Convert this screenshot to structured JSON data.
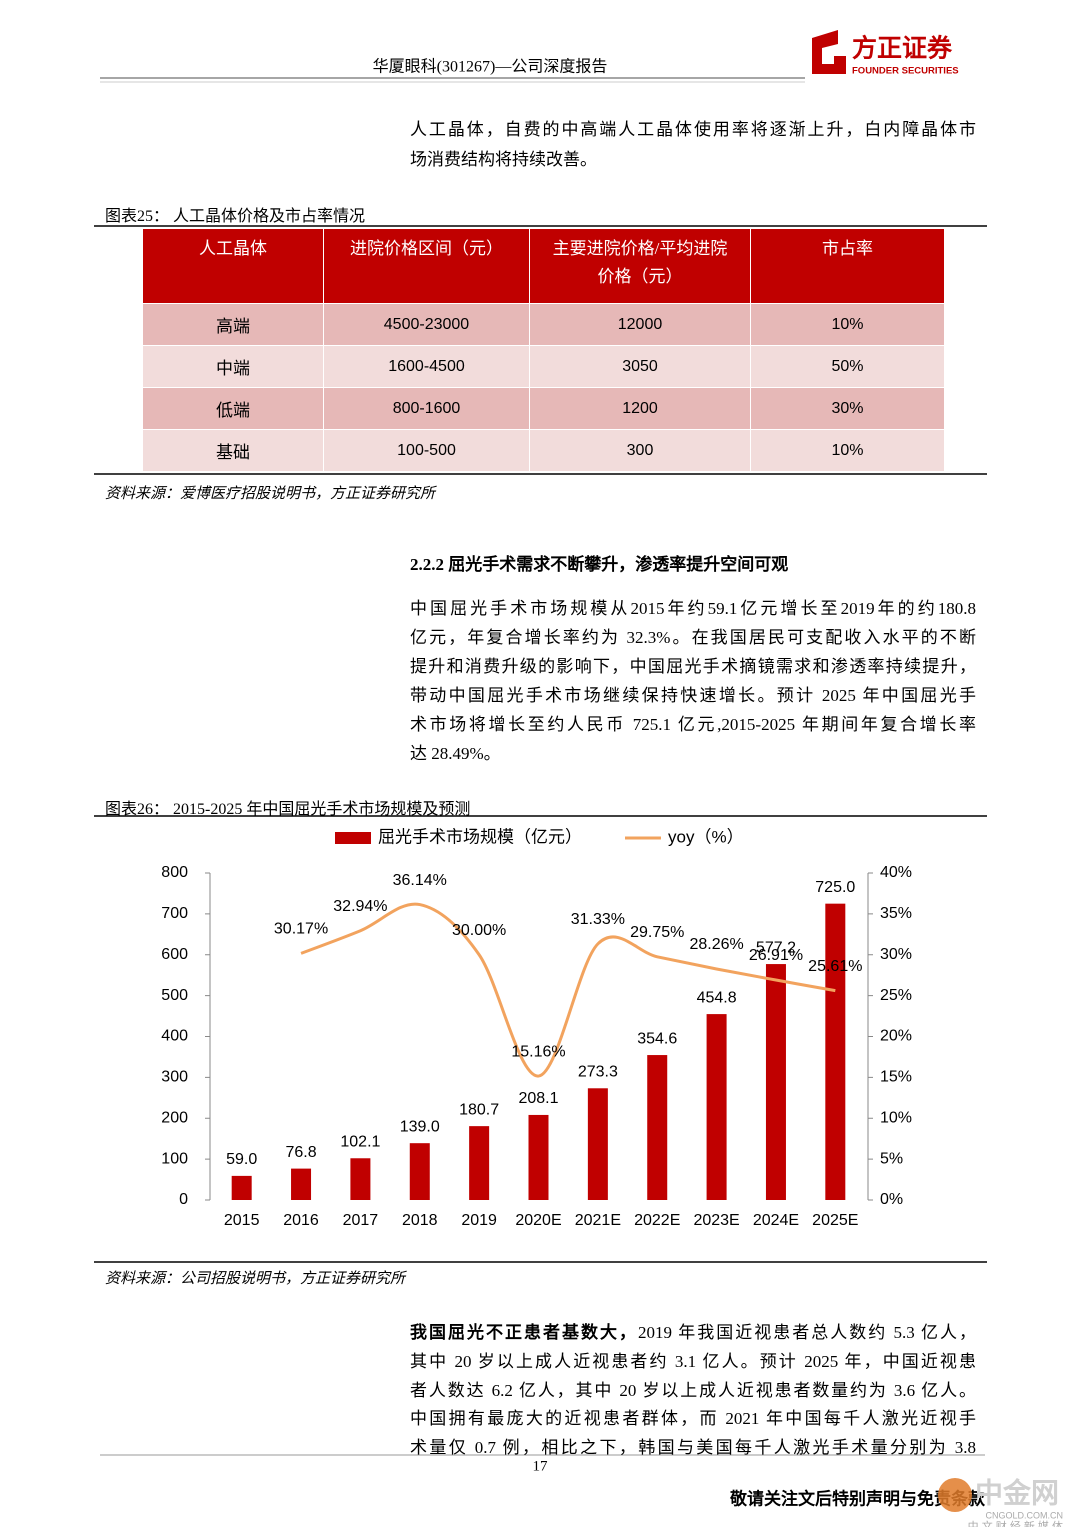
{
  "header": {
    "title": "华厦眼科(301267)—公司深度报告",
    "logo_cn": "方正证券",
    "logo_en": "FOUNDER SECURITIES"
  },
  "intro": {
    "lines": [
      "人工晶体，自费的中高端人工晶体使用率将逐渐上升，白内障晶体市",
      "场消费结构将持续改善。"
    ]
  },
  "table_caption": "图表25：  人工晶体价格及市占率情况",
  "table": {
    "header": [
      "人工晶体",
      "进院价格区间（元）",
      "主要进院价格/平均进院价格（元）",
      "市占率"
    ],
    "rows": [
      [
        "高端",
        "4500-23000",
        "12000",
        "10%"
      ],
      [
        "中端",
        "1600-4500",
        "3050",
        "50%"
      ],
      [
        "低端",
        "800-1600",
        "1200",
        "30%"
      ],
      [
        "基础",
        "100-500",
        "300",
        "10%"
      ]
    ]
  },
  "table_source": "资料来源：爱博医疗招股说明书，方正证券研究所",
  "section": {
    "heading": "2.2.2 屈光手术需求不断攀升，渗透率提升空间可观",
    "lines": [
      "中国屈光手术市场规模从2015年约59.1亿元增长至2019年的约180.8",
      "亿元，年复合增长率约为 32.3%。在我国居民可支配收入水平的不断",
      "提升和消费升级的影响下，中国屈光手术摘镜需求和渗透率持续提升，",
      "带动中国屈光手术市场继续保持快速增长。预计 2025 年中国屈光手",
      "术市场将增长至约人民币 725.1 亿元,2015-2025 年期间年复合增长率",
      "达 28.49%。"
    ]
  },
  "chart_caption": "图表26：  2015-2025 年中国屈光手术市场规模及预测",
  "chart_data": {
    "type": "bar",
    "categories": [
      "2015",
      "2016",
      "2017",
      "2018",
      "2019",
      "2020E",
      "2021E",
      "2022E",
      "2023E",
      "2024E",
      "2025E"
    ],
    "series": [
      {
        "name": "屈光手术市场规模（亿元）",
        "type": "bar",
        "color": "#c00000",
        "values": [
          59.0,
          76.8,
          102.1,
          139.0,
          180.7,
          208.1,
          273.3,
          354.6,
          454.8,
          577.2,
          725.0
        ],
        "value_labels": [
          "59.0",
          "76.8",
          "102.1",
          "139.0",
          "180.7",
          "208.1",
          "273.3",
          "354.6",
          "454.8",
          "577.2",
          "725.0"
        ]
      },
      {
        "name": "yoy（%）",
        "type": "line",
        "axis": "y2",
        "color": "#f2a35e",
        "values": [
          null,
          30.17,
          32.94,
          36.14,
          30.0,
          15.16,
          31.33,
          29.75,
          28.26,
          26.91,
          25.61
        ],
        "value_labels": [
          null,
          "30.17%",
          "32.94%",
          "36.14%",
          "30.00%",
          "15.16%",
          "31.33%",
          "29.75%",
          "28.26%",
          "26.91%",
          "25.61%"
        ]
      }
    ],
    "ylim": [
      0,
      800
    ],
    "yticks": [
      0,
      100,
      200,
      300,
      400,
      500,
      600,
      700,
      800
    ],
    "y2lim": [
      0,
      40
    ],
    "y2ticks": [
      {
        "value": 0,
        "label": "0%"
      },
      {
        "value": 5,
        "label": "5%"
      },
      {
        "value": 10,
        "label": "10%"
      },
      {
        "value": 15,
        "label": "15%"
      },
      {
        "value": 20,
        "label": "20%"
      },
      {
        "value": 25,
        "label": "25%"
      },
      {
        "value": 30,
        "label": "30%"
      },
      {
        "value": 35,
        "label": "35%"
      },
      {
        "value": 40,
        "label": "40%"
      }
    ],
    "legend": "top"
  },
  "chart_source": "资料来源：公司招股说明书，方正证券研究所",
  "closing": {
    "lead": "我国屈光不正患者基数大，",
    "lines": [
      "2019 年我国近视患者总人数约 5.3 亿人，",
      "其中 20 岁以上成人近视患者约 3.1 亿人。预计 2025 年，中国近视患",
      "者人数达 6.2 亿人，其中 20 岁以上成人近视患者数量约为 3.6 亿人。",
      "中国拥有最庞大的近视患者群体，而 2021 年中国每千人激光近视手",
      "术量仅 0.7 例，相比之下，韩国与美国每千人激光手术量分别为 3.8"
    ]
  },
  "footer": {
    "page": "17",
    "notice": "敬请关注文后特别声明与免责条款"
  },
  "watermark": {
    "name": "中金网",
    "site": "CNGOLD.COM.CN",
    "tagline": "中 文 财 经 新 媒 体"
  }
}
